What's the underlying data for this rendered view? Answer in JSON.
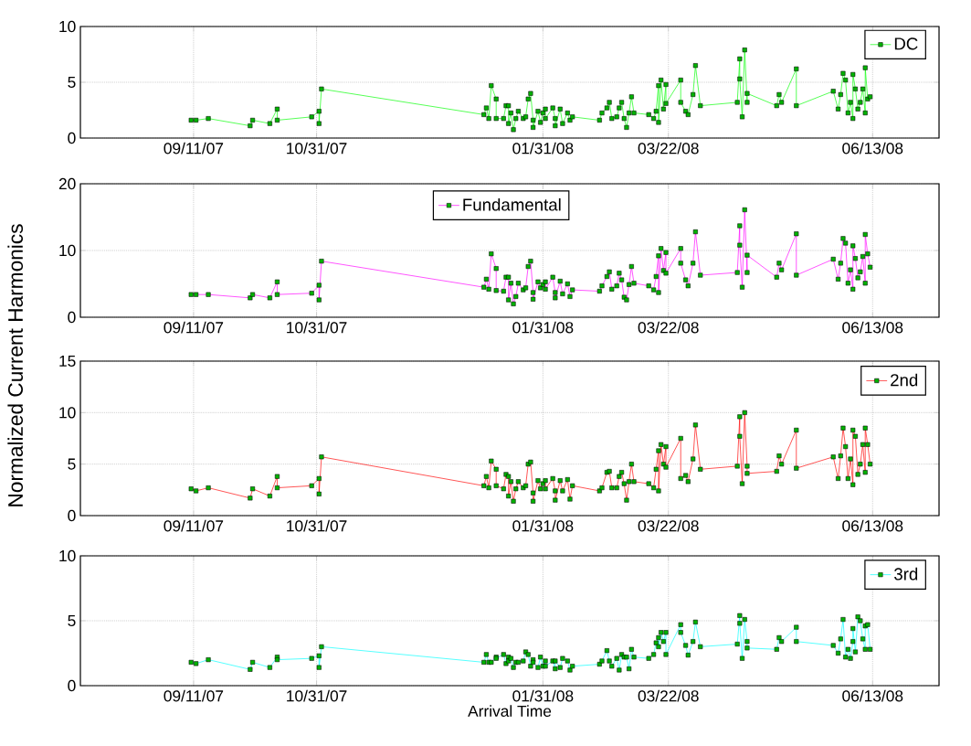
{
  "chart_data": [
    {
      "type": "line",
      "x": [
        "2007-09-10",
        "2007-09-12",
        "2007-09-17",
        "2007-10-04",
        "2007-10-05",
        "2007-10-12",
        "2007-10-15",
        "2007-10-15",
        "2007-10-29",
        "2007-11-01",
        "2007-11-01",
        "2007-11-02",
        "2008-01-07",
        "2008-01-08",
        "2008-01-09",
        "2008-01-10",
        "2008-01-12",
        "2008-01-12",
        "2008-01-15",
        "2008-01-16",
        "2008-01-17",
        "2008-01-17",
        "2008-01-18",
        "2008-01-19",
        "2008-01-20",
        "2008-01-21",
        "2008-01-23",
        "2008-01-24",
        "2008-01-25",
        "2008-01-26",
        "2008-01-27",
        "2008-01-27",
        "2008-01-29",
        "2008-01-30",
        "2008-01-31",
        "2008-02-01",
        "2008-02-01",
        "2008-02-04",
        "2008-02-05",
        "2008-02-05",
        "2008-02-07",
        "2008-02-08",
        "2008-02-10",
        "2008-02-11",
        "2008-02-12",
        "2008-02-23",
        "2008-02-24",
        "2008-02-26",
        "2008-02-27",
        "2008-02-28",
        "2008-03-01",
        "2008-03-02",
        "2008-03-03",
        "2008-03-04",
        "2008-03-05",
        "2008-03-06",
        "2008-03-07",
        "2008-03-08",
        "2008-03-14",
        "2008-03-16",
        "2008-03-17",
        "2008-03-18",
        "2008-03-18",
        "2008-03-19",
        "2008-03-20",
        "2008-03-21",
        "2008-03-21",
        "2008-03-27",
        "2008-03-27",
        "2008-03-29",
        "2008-03-30",
        "2008-04-01",
        "2008-04-02",
        "2008-04-04",
        "2008-04-19",
        "2008-04-20",
        "2008-04-20",
        "2008-04-21",
        "2008-04-22",
        "2008-04-23",
        "2008-04-23",
        "2008-05-05",
        "2008-05-06",
        "2008-05-07",
        "2008-05-13",
        "2008-05-13",
        "2008-05-28",
        "2008-05-30",
        "2008-05-31",
        "2008-06-01",
        "2008-06-02",
        "2008-06-03",
        "2008-06-04",
        "2008-06-05",
        "2008-06-05",
        "2008-06-06",
        "2008-06-07",
        "2008-06-08",
        "2008-06-09",
        "2008-06-10",
        "2008-06-10",
        "2008-06-11",
        "2008-06-12"
      ],
      "series": [
        {
          "name": "DC",
          "color": "#00ff00",
          "values": [
            1.6,
            1.6,
            1.75,
            1.1,
            1.6,
            1.3,
            2.6,
            1.6,
            1.9,
            2.4,
            1.3,
            4.4,
            2.1,
            2.7,
            1.75,
            4.7,
            3.5,
            1.75,
            1.75,
            2.9,
            2.9,
            1.3,
            2.25,
            0.75,
            1.75,
            2.4,
            1.75,
            1.9,
            3.5,
            4.0,
            1.6,
            0.95,
            2.4,
            1.4,
            2.25,
            2.6,
            1.75,
            2.7,
            1.75,
            1.1,
            2.6,
            1.3,
            2.25,
            1.6,
            1.9,
            1.6,
            2.25,
            2.7,
            3.2,
            1.75,
            1.9,
            2.7,
            3.2,
            1.75,
            0.95,
            2.25,
            3.7,
            2.25,
            2.1,
            1.75,
            2.4,
            4.7,
            1.4,
            5.2,
            2.6,
            4.8,
            3.1,
            5.2,
            3.2,
            2.4,
            2.1,
            3.9,
            6.5,
            2.9,
            3.2,
            7.1,
            5.3,
            1.9,
            7.9,
            3.2,
            4.0,
            2.9,
            3.9,
            3.2,
            6.2,
            2.9,
            4.2,
            2.6,
            3.9,
            5.8,
            5.2,
            2.25,
            3.2,
            1.75,
            5.7,
            4.4,
            2.6,
            3.2,
            4.4,
            2.25,
            6.3,
            3.5,
            3.7
          ]
        }
      ],
      "xlim": [
        "2007-07-27",
        "2008-07-10"
      ],
      "xticks": [
        {
          "value": "2007-09-11",
          "label": "09/11/07"
        },
        {
          "value": "2007-10-31",
          "label": "10/31/07"
        },
        {
          "value": "2008-01-31",
          "label": "01/31/08"
        },
        {
          "value": "2008-03-22",
          "label": "03/22/08"
        },
        {
          "value": "2008-06-13",
          "label": "06/13/08"
        }
      ],
      "ylim": [
        0,
        10
      ],
      "yticks": [
        0,
        5,
        10
      ],
      "grid": true,
      "legend": "top right",
      "marker": "square",
      "line_style": "solid"
    },
    {
      "type": "line",
      "ylabel": "Normalized  Current Harmonics",
      "x": [
        "2007-09-10",
        "2007-09-12",
        "2007-09-17",
        "2007-10-04",
        "2007-10-05",
        "2007-10-12",
        "2007-10-15",
        "2007-10-15",
        "2007-10-29",
        "2007-11-01",
        "2007-11-01",
        "2007-11-02",
        "2008-01-07",
        "2008-01-08",
        "2008-01-09",
        "2008-01-10",
        "2008-01-12",
        "2008-01-12",
        "2008-01-15",
        "2008-01-16",
        "2008-01-17",
        "2008-01-17",
        "2008-01-18",
        "2008-01-19",
        "2008-01-20",
        "2008-01-21",
        "2008-01-23",
        "2008-01-24",
        "2008-01-25",
        "2008-01-26",
        "2008-01-27",
        "2008-01-27",
        "2008-01-29",
        "2008-01-30",
        "2008-01-31",
        "2008-02-01",
        "2008-02-01",
        "2008-02-04",
        "2008-02-05",
        "2008-02-05",
        "2008-02-07",
        "2008-02-08",
        "2008-02-10",
        "2008-02-11",
        "2008-02-12",
        "2008-02-23",
        "2008-02-24",
        "2008-02-26",
        "2008-02-27",
        "2008-02-28",
        "2008-03-01",
        "2008-03-02",
        "2008-03-03",
        "2008-03-04",
        "2008-03-05",
        "2008-03-06",
        "2008-03-07",
        "2008-03-08",
        "2008-03-14",
        "2008-03-16",
        "2008-03-17",
        "2008-03-18",
        "2008-03-18",
        "2008-03-19",
        "2008-03-20",
        "2008-03-21",
        "2008-03-21",
        "2008-03-27",
        "2008-03-27",
        "2008-03-29",
        "2008-03-30",
        "2008-04-01",
        "2008-04-02",
        "2008-04-04",
        "2008-04-19",
        "2008-04-20",
        "2008-04-20",
        "2008-04-21",
        "2008-04-22",
        "2008-04-23",
        "2008-04-23",
        "2008-05-05",
        "2008-05-06",
        "2008-05-07",
        "2008-05-13",
        "2008-05-13",
        "2008-05-28",
        "2008-05-30",
        "2008-05-31",
        "2008-06-01",
        "2008-06-02",
        "2008-06-03",
        "2008-06-04",
        "2008-06-05",
        "2008-06-05",
        "2008-06-06",
        "2008-06-07",
        "2008-06-08",
        "2008-06-09",
        "2008-06-10",
        "2008-06-10",
        "2008-06-11",
        "2008-06-12"
      ],
      "series": [
        {
          "name": "Fundamental",
          "color": "#ff00ff",
          "values": [
            3.4,
            3.4,
            3.4,
            2.9,
            3.4,
            2.9,
            5.3,
            3.4,
            3.6,
            4.8,
            2.6,
            8.4,
            4.5,
            5.7,
            4.2,
            9.5,
            7.3,
            4.0,
            3.9,
            6.0,
            6.0,
            2.6,
            5.1,
            2.0,
            3.1,
            5.1,
            4.1,
            4.4,
            7.6,
            8.4,
            3.7,
            2.7,
            5.3,
            4.4,
            4.9,
            5.3,
            4.2,
            6.0,
            3.7,
            2.9,
            5.4,
            3.5,
            5.0,
            3.1,
            4.1,
            3.9,
            4.7,
            6.1,
            6.8,
            4.2,
            4.7,
            6.6,
            5.6,
            3.0,
            2.6,
            4.9,
            7.6,
            5.1,
            4.7,
            4.1,
            6.1,
            9.2,
            3.7,
            10.3,
            7.0,
            9.7,
            6.6,
            10.3,
            8.1,
            5.6,
            4.7,
            8.1,
            12.8,
            6.3,
            6.7,
            13.7,
            10.8,
            4.5,
            16.1,
            6.7,
            9.3,
            6.0,
            8.1,
            7.1,
            12.5,
            6.3,
            8.7,
            5.7,
            8.1,
            11.8,
            11.1,
            5.1,
            7.1,
            4.2,
            10.7,
            8.8,
            5.9,
            6.8,
            9.1,
            5.1,
            12.4,
            9.5,
            7.5
          ]
        }
      ],
      "xlim": [
        "2007-07-27",
        "2008-07-10"
      ],
      "xticks": [
        {
          "value": "2007-09-11",
          "label": "09/11/07"
        },
        {
          "value": "2007-10-31",
          "label": "10/31/07"
        },
        {
          "value": "2008-01-31",
          "label": "01/31/08"
        },
        {
          "value": "2008-03-22",
          "label": "03/22/08"
        },
        {
          "value": "2008-06-13",
          "label": "06/13/08"
        }
      ],
      "ylim": [
        0,
        20
      ],
      "yticks": [
        0,
        10,
        20
      ],
      "grid": true,
      "legend": "top",
      "marker": "square",
      "line_style": "solid"
    },
    {
      "type": "line",
      "x": [
        "2007-09-10",
        "2007-09-12",
        "2007-09-17",
        "2007-10-04",
        "2007-10-05",
        "2007-10-12",
        "2007-10-15",
        "2007-10-15",
        "2007-10-29",
        "2007-11-01",
        "2007-11-01",
        "2007-11-02",
        "2008-01-07",
        "2008-01-08",
        "2008-01-09",
        "2008-01-10",
        "2008-01-12",
        "2008-01-12",
        "2008-01-15",
        "2008-01-16",
        "2008-01-17",
        "2008-01-17",
        "2008-01-18",
        "2008-01-19",
        "2008-01-20",
        "2008-01-21",
        "2008-01-23",
        "2008-01-24",
        "2008-01-25",
        "2008-01-26",
        "2008-01-27",
        "2008-01-27",
        "2008-01-29",
        "2008-01-30",
        "2008-01-31",
        "2008-02-01",
        "2008-02-01",
        "2008-02-04",
        "2008-02-05",
        "2008-02-05",
        "2008-02-07",
        "2008-02-08",
        "2008-02-10",
        "2008-02-11",
        "2008-02-12",
        "2008-02-23",
        "2008-02-24",
        "2008-02-26",
        "2008-02-27",
        "2008-02-28",
        "2008-03-01",
        "2008-03-02",
        "2008-03-03",
        "2008-03-04",
        "2008-03-05",
        "2008-03-06",
        "2008-03-07",
        "2008-03-08",
        "2008-03-14",
        "2008-03-16",
        "2008-03-17",
        "2008-03-18",
        "2008-03-18",
        "2008-03-19",
        "2008-03-20",
        "2008-03-21",
        "2008-03-21",
        "2008-03-27",
        "2008-03-27",
        "2008-03-29",
        "2008-03-30",
        "2008-04-01",
        "2008-04-02",
        "2008-04-04",
        "2008-04-19",
        "2008-04-20",
        "2008-04-20",
        "2008-04-21",
        "2008-04-22",
        "2008-04-23",
        "2008-04-23",
        "2008-05-05",
        "2008-05-06",
        "2008-05-07",
        "2008-05-13",
        "2008-05-13",
        "2008-05-28",
        "2008-05-30",
        "2008-05-31",
        "2008-06-01",
        "2008-06-02",
        "2008-06-03",
        "2008-06-04",
        "2008-06-05",
        "2008-06-05",
        "2008-06-06",
        "2008-06-07",
        "2008-06-08",
        "2008-06-09",
        "2008-06-10",
        "2008-06-10",
        "2008-06-11",
        "2008-06-12"
      ],
      "series": [
        {
          "name": "2nd",
          "color": "#ff0000",
          "values": [
            2.6,
            2.4,
            2.7,
            1.7,
            2.6,
            1.9,
            3.8,
            2.7,
            2.9,
            3.6,
            2.1,
            5.7,
            2.9,
            3.8,
            2.7,
            5.3,
            4.5,
            2.9,
            2.6,
            4.0,
            3.8,
            1.9,
            3.3,
            1.4,
            2.6,
            3.3,
            2.7,
            2.9,
            5.0,
            5.2,
            2.2,
            1.4,
            3.4,
            2.6,
            3.1,
            3.4,
            2.6,
            3.6,
            2.4,
            1.5,
            3.4,
            2.4,
            3.5,
            1.6,
            2.9,
            2.4,
            2.7,
            4.2,
            4.3,
            2.7,
            2.7,
            3.8,
            4.2,
            3.1,
            1.5,
            3.3,
            5.0,
            3.3,
            3.1,
            2.7,
            4.5,
            6.3,
            2.4,
            6.9,
            5.0,
            6.7,
            4.7,
            7.5,
            3.6,
            3.9,
            3.3,
            5.5,
            8.8,
            4.5,
            4.8,
            9.6,
            7.7,
            3.1,
            10.0,
            4.8,
            4.1,
            4.3,
            5.8,
            5.0,
            8.3,
            4.6,
            5.7,
            3.6,
            5.8,
            8.5,
            6.7,
            3.6,
            5.5,
            3.0,
            8.3,
            7.7,
            4.0,
            5.0,
            6.9,
            4.2,
            8.5,
            6.9,
            5.0
          ]
        }
      ],
      "xlim": [
        "2007-07-27",
        "2008-07-10"
      ],
      "xticks": [
        {
          "value": "2007-09-11",
          "label": "09/11/07"
        },
        {
          "value": "2007-10-31",
          "label": "10/31/07"
        },
        {
          "value": "2008-01-31",
          "label": "01/31/08"
        },
        {
          "value": "2008-03-22",
          "label": "03/22/08"
        },
        {
          "value": "2008-06-13",
          "label": "06/13/08"
        }
      ],
      "ylim": [
        0,
        15
      ],
      "yticks": [
        0,
        5,
        10,
        15
      ],
      "grid": true,
      "legend": "top right",
      "marker": "square",
      "line_style": "solid"
    },
    {
      "type": "line",
      "xlabel": "Arrival Time",
      "x": [
        "2007-09-10",
        "2007-09-12",
        "2007-09-17",
        "2007-10-04",
        "2007-10-05",
        "2007-10-12",
        "2007-10-15",
        "2007-10-15",
        "2007-10-29",
        "2007-11-01",
        "2007-11-01",
        "2007-11-02",
        "2008-01-07",
        "2008-01-08",
        "2008-01-09",
        "2008-01-10",
        "2008-01-12",
        "2008-01-12",
        "2008-01-15",
        "2008-01-16",
        "2008-01-17",
        "2008-01-17",
        "2008-01-18",
        "2008-01-19",
        "2008-01-20",
        "2008-01-21",
        "2008-01-23",
        "2008-01-24",
        "2008-01-25",
        "2008-01-26",
        "2008-01-27",
        "2008-01-27",
        "2008-01-29",
        "2008-01-30",
        "2008-01-31",
        "2008-02-01",
        "2008-02-01",
        "2008-02-04",
        "2008-02-05",
        "2008-02-05",
        "2008-02-07",
        "2008-02-08",
        "2008-02-10",
        "2008-02-11",
        "2008-02-12",
        "2008-02-23",
        "2008-02-24",
        "2008-02-26",
        "2008-02-27",
        "2008-02-28",
        "2008-03-01",
        "2008-03-02",
        "2008-03-03",
        "2008-03-04",
        "2008-03-05",
        "2008-03-06",
        "2008-03-07",
        "2008-03-08",
        "2008-03-14",
        "2008-03-16",
        "2008-03-17",
        "2008-03-18",
        "2008-03-18",
        "2008-03-19",
        "2008-03-20",
        "2008-03-21",
        "2008-03-21",
        "2008-03-27",
        "2008-03-27",
        "2008-03-29",
        "2008-03-30",
        "2008-04-01",
        "2008-04-02",
        "2008-04-04",
        "2008-04-19",
        "2008-04-20",
        "2008-04-20",
        "2008-04-21",
        "2008-04-22",
        "2008-04-23",
        "2008-04-23",
        "2008-05-05",
        "2008-05-06",
        "2008-05-07",
        "2008-05-13",
        "2008-05-13",
        "2008-05-28",
        "2008-05-30",
        "2008-05-31",
        "2008-06-01",
        "2008-06-02",
        "2008-06-03",
        "2008-06-04",
        "2008-06-05",
        "2008-06-05",
        "2008-06-06",
        "2008-06-07",
        "2008-06-08",
        "2008-06-09",
        "2008-06-10",
        "2008-06-10",
        "2008-06-11",
        "2008-06-12"
      ],
      "series": [
        {
          "name": "3rd",
          "color": "#00ffff",
          "values": [
            1.8,
            1.7,
            2.0,
            1.25,
            1.8,
            1.4,
            2.2,
            2.0,
            2.1,
            2.3,
            1.4,
            3.0,
            1.8,
            2.4,
            1.8,
            1.8,
            2.2,
            2.1,
            2.4,
            1.7,
            2.2,
            1.9,
            2.1,
            1.4,
            1.8,
            1.8,
            1.9,
            2.6,
            2.4,
            1.5,
            2.0,
            1.8,
            1.4,
            2.2,
            1.5,
            1.9,
            1.5,
            1.9,
            1.3,
            1.9,
            1.4,
            2.1,
            1.9,
            1.2,
            1.5,
            1.65,
            1.9,
            2.7,
            1.9,
            1.5,
            2.1,
            1.2,
            2.4,
            2.2,
            2.2,
            1.3,
            2.8,
            2.2,
            2.1,
            2.4,
            3.3,
            3.7,
            3.0,
            4.1,
            3.4,
            4.1,
            2.4,
            4.7,
            4.1,
            3.1,
            2.35,
            3.4,
            4.9,
            3.0,
            3.2,
            5.4,
            4.8,
            2.1,
            5.1,
            3.4,
            2.9,
            2.8,
            3.7,
            3.4,
            4.5,
            3.4,
            3.1,
            2.5,
            3.6,
            5.1,
            2.2,
            2.8,
            2.1,
            3.4,
            4.4,
            2.6,
            5.3,
            5.0,
            3.6,
            2.8,
            4.6,
            4.7,
            2.8
          ]
        }
      ],
      "xlim": [
        "2007-07-27",
        "2008-07-10"
      ],
      "xticks": [
        {
          "value": "2007-09-11",
          "label": "09/11/07"
        },
        {
          "value": "2007-10-31",
          "label": "10/31/07"
        },
        {
          "value": "2008-01-31",
          "label": "01/31/08"
        },
        {
          "value": "2008-03-22",
          "label": "03/22/08"
        },
        {
          "value": "2008-06-13",
          "label": "06/13/08"
        }
      ],
      "ylim": [
        0,
        10
      ],
      "yticks": [
        0,
        5,
        10
      ],
      "grid": true,
      "legend": "top right",
      "marker": "square",
      "line_style": "solid"
    }
  ]
}
